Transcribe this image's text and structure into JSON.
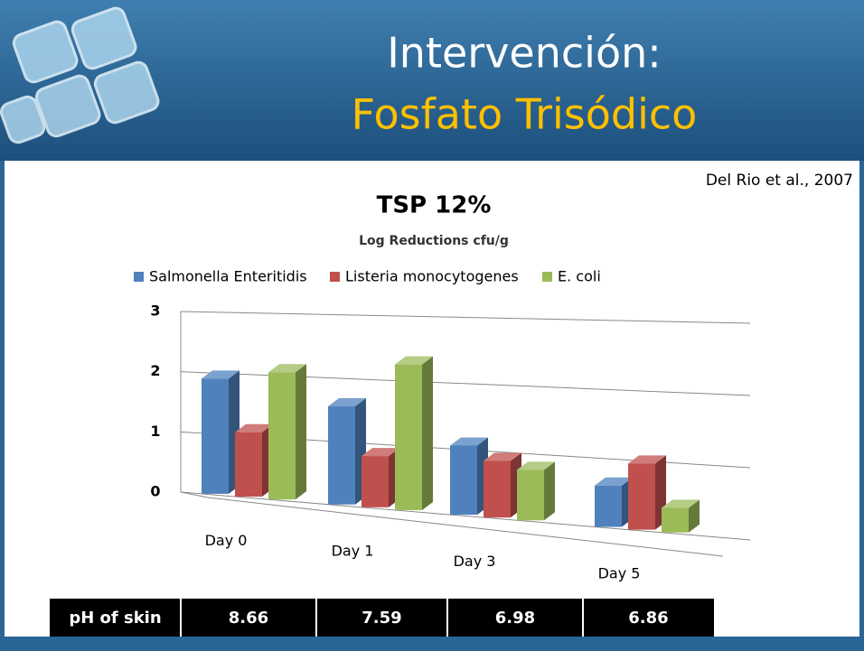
{
  "header": {
    "title_line1": "Intervención:",
    "title_line2": "Fosfato Trisódico"
  },
  "citation": "Del Rio et al., 2007",
  "chart_data": {
    "type": "bar3d",
    "title": "TSP 12%",
    "subtitle": "Log Reductions cfu/g",
    "categories": [
      "Day 0",
      "Day 1",
      "Day 3",
      "Day 5"
    ],
    "series": [
      {
        "name": "Salmonella Enteritidis",
        "color": "#4f81bd",
        "values": [
          1.9,
          1.55,
          1.05,
          0.6
        ]
      },
      {
        "name": "Listeria monocytogenes",
        "color": "#c0504d",
        "values": [
          1.05,
          0.8,
          0.85,
          0.95
        ]
      },
      {
        "name": "E. coli",
        "color": "#9bbb59",
        "values": [
          2.05,
          2.25,
          0.75,
          0.35
        ]
      }
    ],
    "ylim": [
      0,
      3
    ],
    "yticks": [
      0,
      1,
      2,
      3
    ],
    "grid": true
  },
  "table": {
    "rows": [
      [
        "pH of skin",
        "8.66",
        "7.59",
        "6.98",
        "6.86"
      ]
    ]
  }
}
